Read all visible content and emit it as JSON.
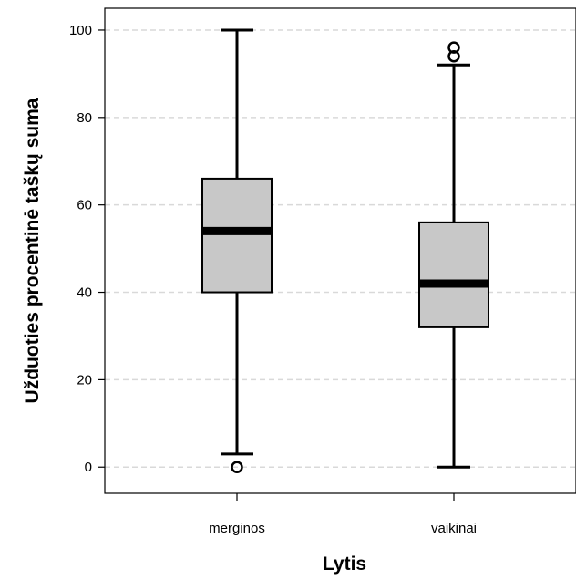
{
  "chart_data": {
    "type": "boxplot",
    "xlabel": "Lytis",
    "ylabel": "Užduoties procentinė taškų suma",
    "ylim": [
      -6,
      105
    ],
    "yticks": [
      0,
      20,
      40,
      60,
      80,
      100
    ],
    "grid": true,
    "colors": {
      "box_fill": "#c8c8c8",
      "stroke": "#000000",
      "grid": "#d9d9d9"
    },
    "categories": [
      "merginos",
      "vaikinai"
    ],
    "boxes": [
      {
        "category": "merginos",
        "whisker_low": 3,
        "q1": 40,
        "median": 54,
        "q3": 66,
        "whisker_high": 100,
        "outliers": [
          0
        ]
      },
      {
        "category": "vaikinai",
        "whisker_low": 0,
        "q1": 32,
        "median": 42,
        "q3": 56,
        "whisker_high": 92,
        "outliers": [
          94,
          96
        ]
      }
    ]
  }
}
